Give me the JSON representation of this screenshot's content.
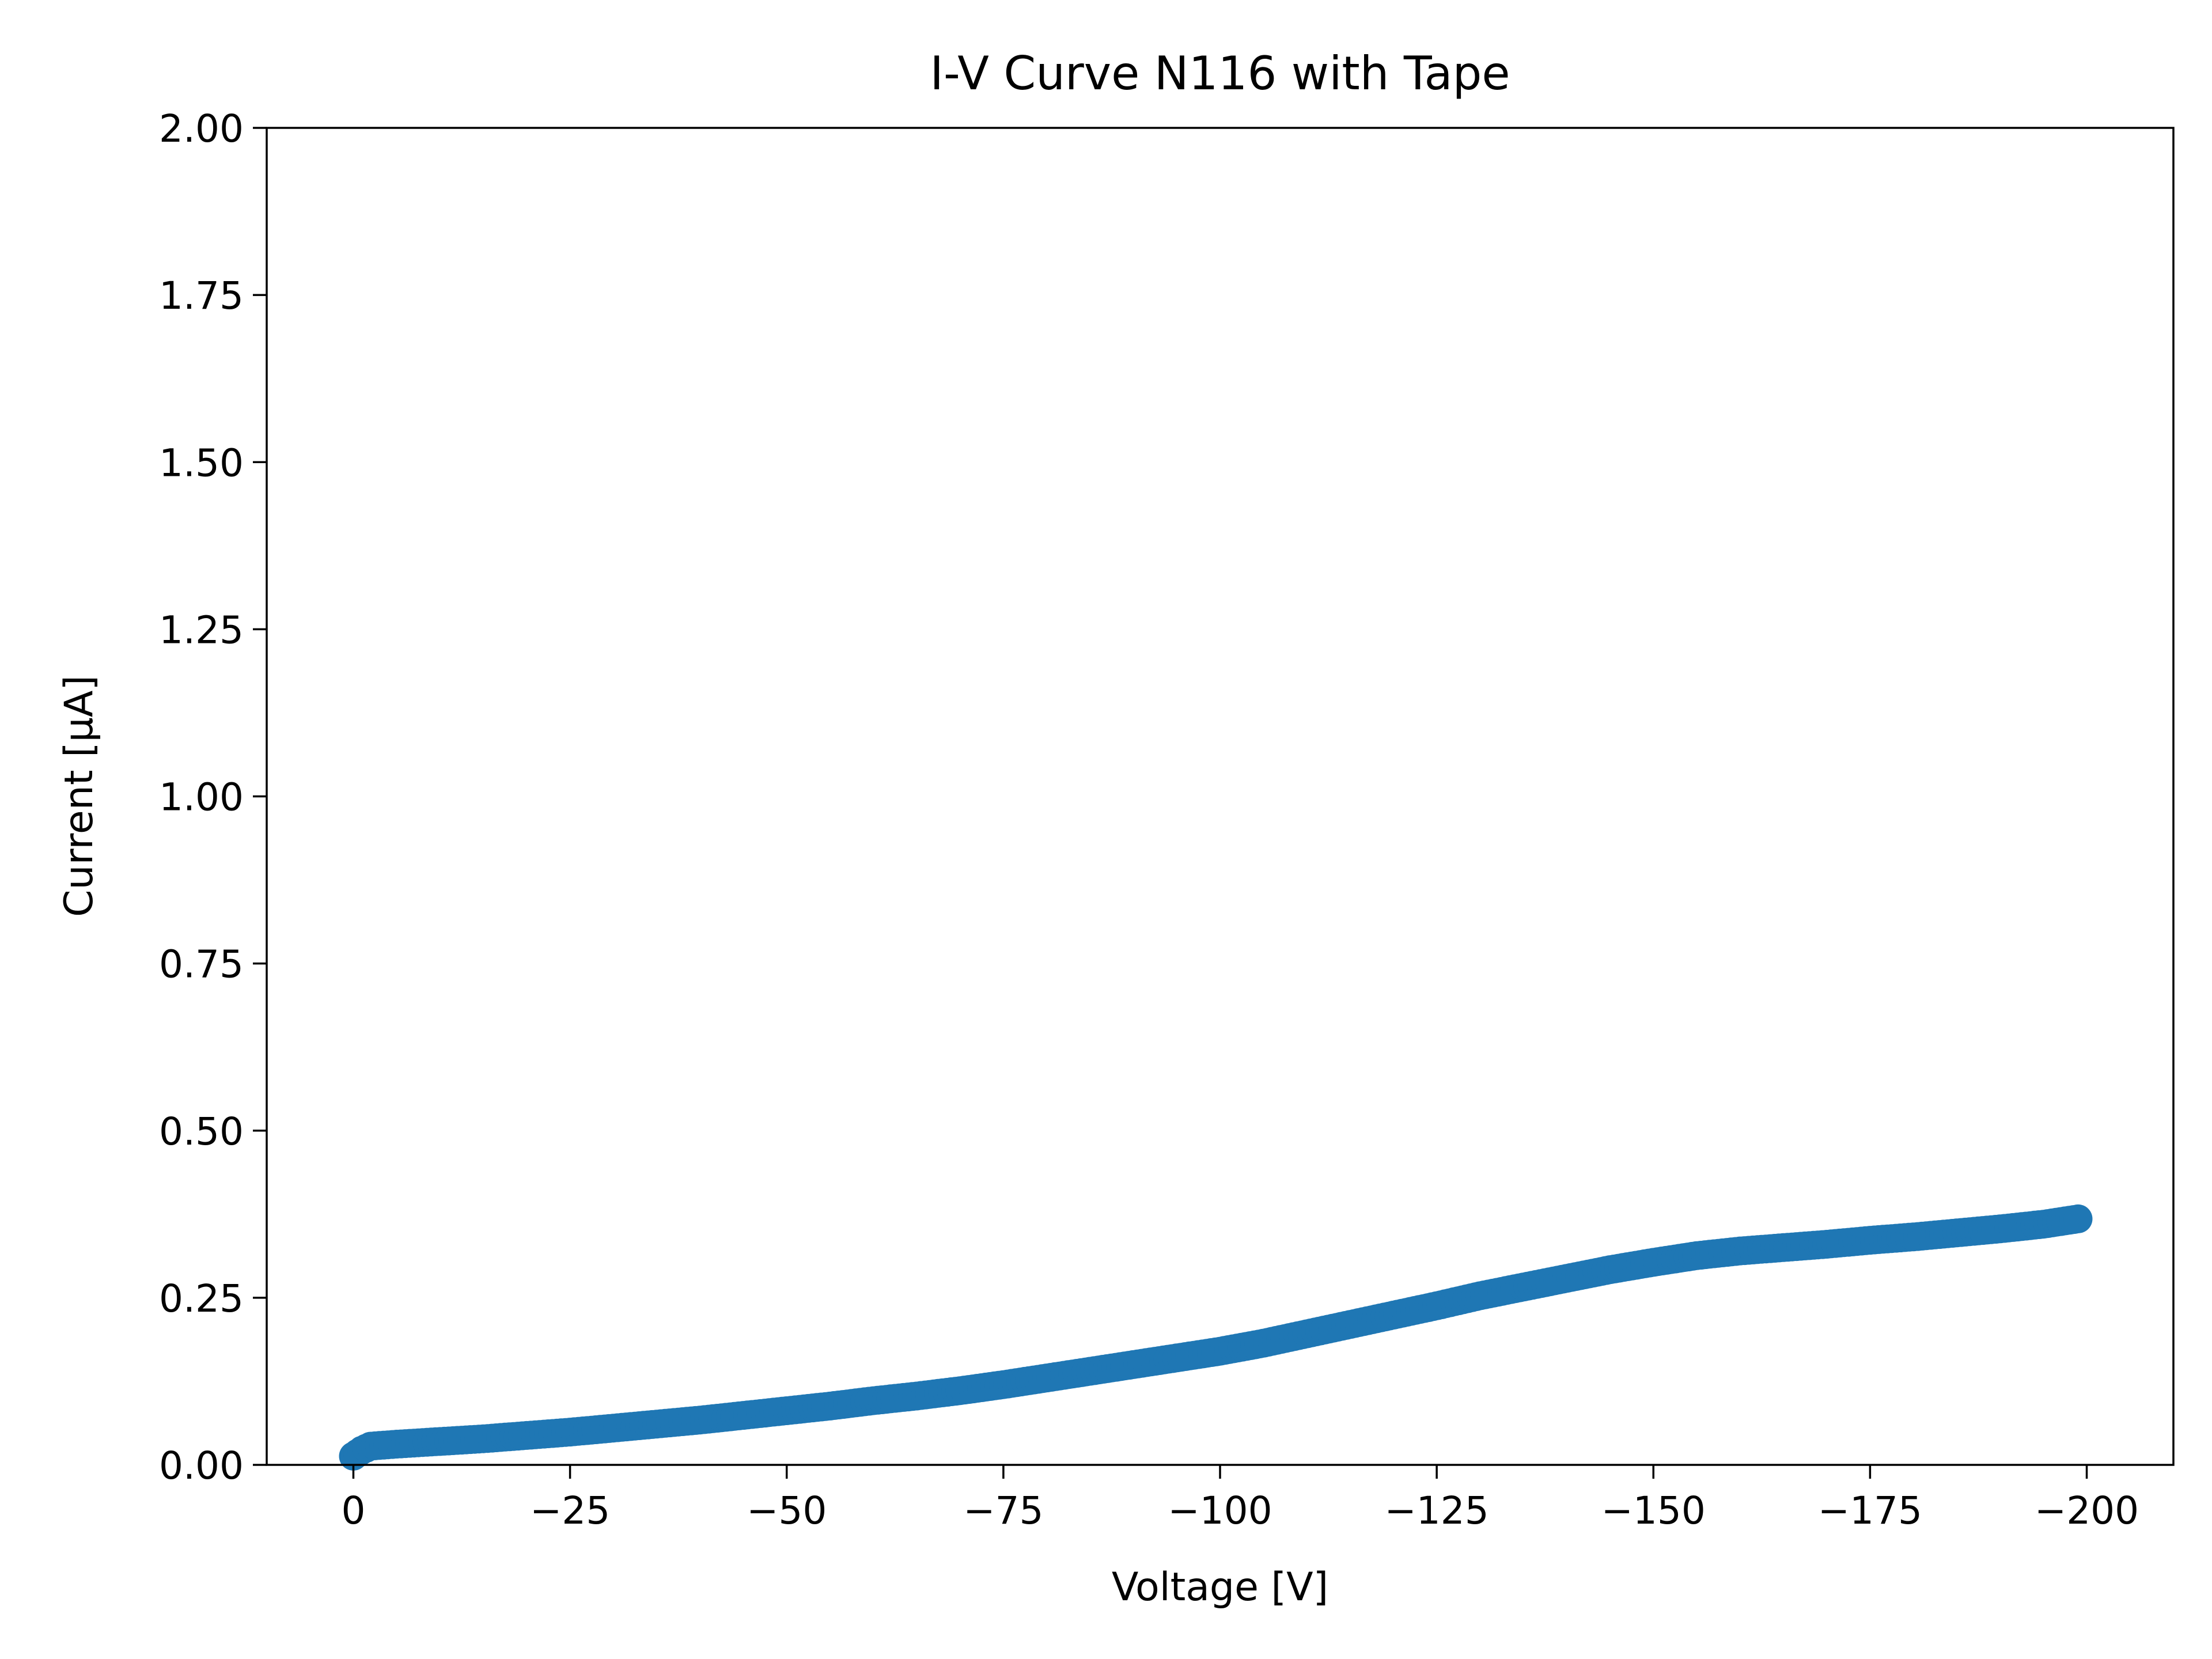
{
  "chart_data": {
    "type": "scatter",
    "title": "I-V Curve N116 with Tape",
    "xlabel": "Voltage [V]",
    "ylabel": "Current [μA]",
    "xlim": [
      10,
      -210
    ],
    "ylim": [
      0,
      2
    ],
    "x_ticks": [
      0,
      -25,
      -50,
      -75,
      -100,
      -125,
      -150,
      -175,
      -200
    ],
    "x_tick_labels": [
      "0",
      "−25",
      "−50",
      "−75",
      "−100",
      "−125",
      "−150",
      "−175",
      "−200"
    ],
    "y_ticks": [
      0,
      0.25,
      0.5,
      0.75,
      1.0,
      1.25,
      1.5,
      1.75,
      2.0
    ],
    "y_tick_labels": [
      "0.00",
      "0.25",
      "0.50",
      "0.75",
      "1.00",
      "1.25",
      "1.50",
      "1.75",
      "2.00"
    ],
    "grid": false,
    "marker_color": "#1f77b4",
    "series": [
      {
        "x": [
          0,
          -1,
          -2,
          -5,
          -10,
          -15,
          -20,
          -25,
          -30,
          -35,
          -40,
          -45,
          -50,
          -55,
          -60,
          -65,
          -70,
          -75,
          -80,
          -85,
          -90,
          -95,
          -100,
          -105,
          -110,
          -115,
          -120,
          -125,
          -130,
          -135,
          -140,
          -145,
          -150,
          -155,
          -160,
          -165,
          -170,
          -175,
          -180,
          -185,
          -190,
          -195,
          -199
        ],
        "y": [
          0.013,
          0.022,
          0.028,
          0.031,
          0.035,
          0.039,
          0.044,
          0.049,
          0.055,
          0.061,
          0.067,
          0.074,
          0.081,
          0.088,
          0.096,
          0.103,
          0.111,
          0.12,
          0.13,
          0.14,
          0.15,
          0.16,
          0.17,
          0.182,
          0.196,
          0.21,
          0.224,
          0.238,
          0.253,
          0.266,
          0.279,
          0.292,
          0.303,
          0.313,
          0.32,
          0.325,
          0.33,
          0.336,
          0.341,
          0.347,
          0.353,
          0.36,
          0.368
        ]
      }
    ]
  }
}
